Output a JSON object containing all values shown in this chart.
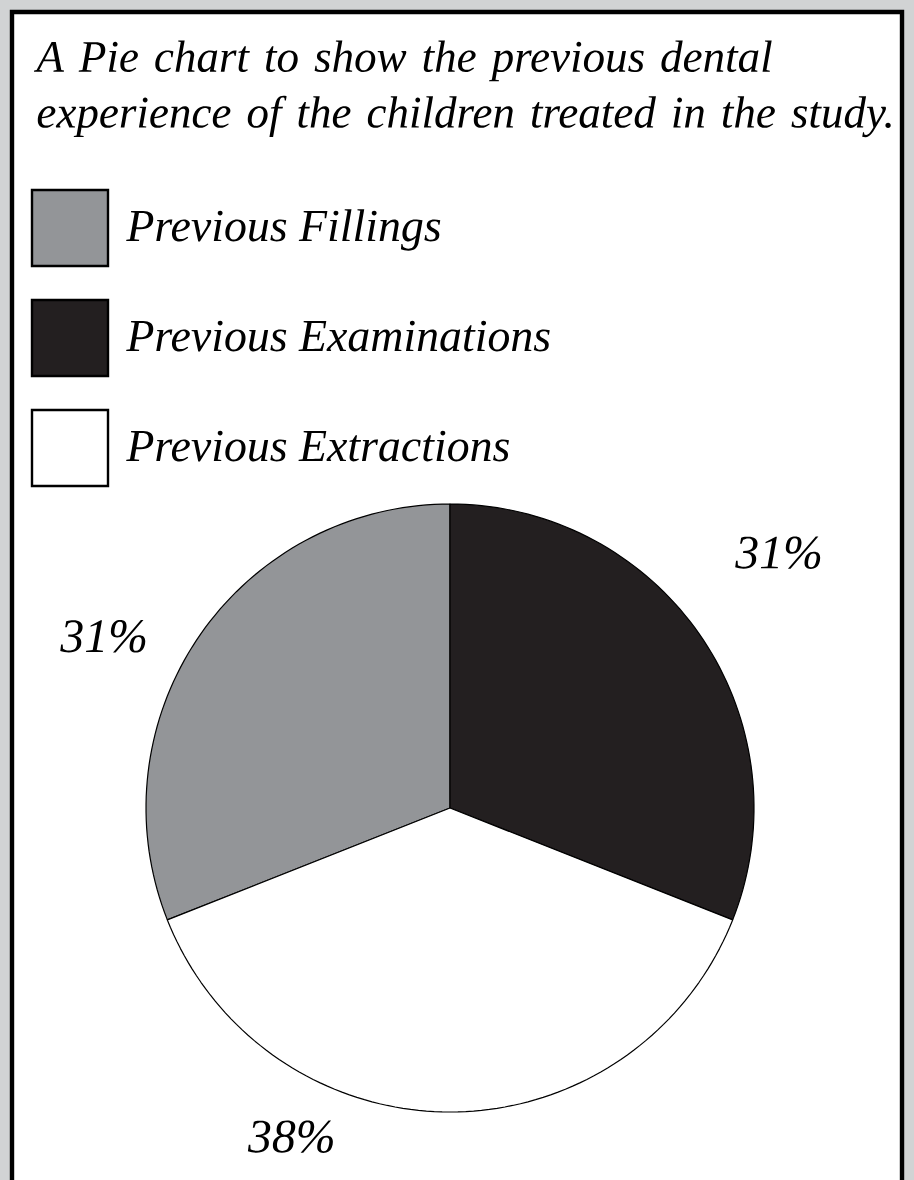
{
  "chart_data": {
    "type": "pie",
    "title": "A Pie chart to show the previous dental experience of the children treated in the study.",
    "categories": [
      "Previous Fillings",
      "Previous Examinations",
      "Previous Extractions"
    ],
    "values": [
      31,
      31,
      38
    ],
    "colors": [
      "#939598",
      "#231f20",
      "#ffffff"
    ],
    "value_labels": [
      "31%",
      "31%",
      "38%"
    ],
    "legend": "top left"
  }
}
